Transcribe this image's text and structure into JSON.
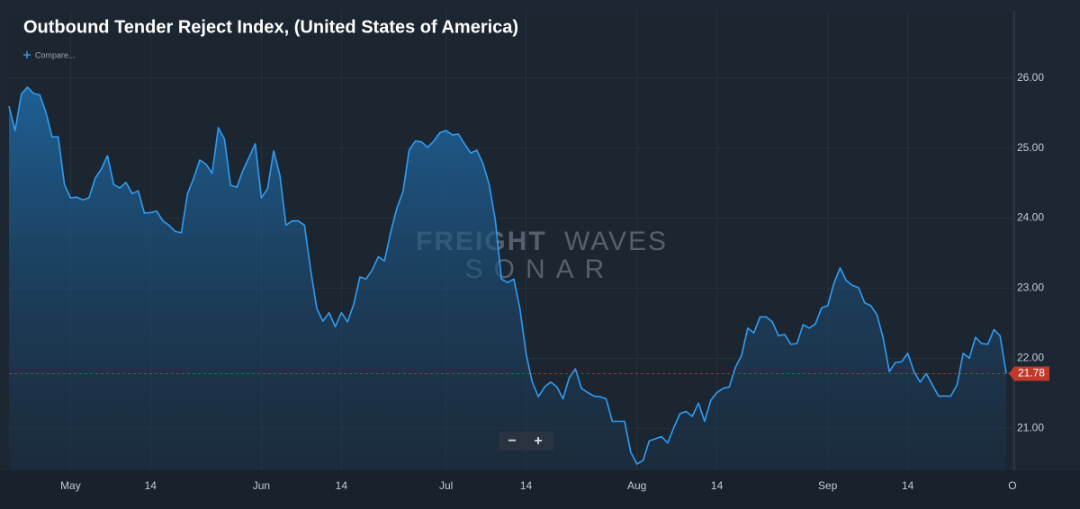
{
  "chart_data": {
    "type": "line",
    "title": "Outbound Tender Reject Index, (United States of America)",
    "compare_label": "Compare...",
    "watermark": [
      "FREIGHT",
      "WAVES",
      "SONAR"
    ],
    "zoom_controls": [
      "−",
      "+"
    ],
    "color": "#2f9df4",
    "grid": true,
    "ylim": [
      20.4,
      26.96
    ],
    "yticks": [
      {
        "value": 21,
        "label": "21.00"
      },
      {
        "value": 22,
        "label": "22.00"
      },
      {
        "value": 23,
        "label": "23.00"
      },
      {
        "value": 24,
        "label": "24.00"
      },
      {
        "value": 25,
        "label": "25.00"
      },
      {
        "value": 26,
        "label": "26.00"
      }
    ],
    "categories": [
      null,
      null,
      null,
      null,
      null,
      null,
      null,
      null,
      null,
      null,
      "May",
      null,
      null,
      null,
      null,
      null,
      null,
      null,
      null,
      null,
      null,
      null,
      null,
      "14",
      null,
      null,
      null,
      null,
      null,
      null,
      null,
      null,
      null,
      null,
      null,
      null,
      null,
      null,
      null,
      null,
      null,
      "Jun",
      null,
      null,
      null,
      null,
      null,
      null,
      null,
      null,
      null,
      null,
      null,
      null,
      "14",
      null,
      null,
      null,
      null,
      null,
      null,
      null,
      null,
      null,
      null,
      null,
      null,
      null,
      null,
      null,
      null,
      "Jul",
      null,
      null,
      null,
      null,
      null,
      null,
      null,
      null,
      null,
      null,
      null,
      null,
      "14",
      null,
      null,
      null,
      null,
      null,
      null,
      null,
      null,
      null,
      null,
      null,
      null,
      null,
      null,
      null,
      null,
      null,
      "Aug",
      null,
      null,
      null,
      null,
      null,
      null,
      null,
      null,
      null,
      null,
      null,
      null,
      "14",
      null,
      null,
      null,
      null,
      null,
      null,
      null,
      null,
      null,
      null,
      null,
      null,
      null,
      null,
      null,
      null,
      null,
      "Sep",
      null,
      null,
      null,
      null,
      null,
      null,
      null,
      null,
      null,
      null,
      null,
      null,
      "14",
      null,
      null,
      null,
      null,
      null,
      null,
      null,
      null,
      null,
      null,
      null,
      null,
      null,
      null,
      null,
      null,
      "O"
    ],
    "values": [
      25.6,
      25.25,
      25.77,
      25.87,
      25.78,
      25.76,
      25.51,
      25.16,
      25.16,
      24.48,
      24.29,
      24.3,
      24.26,
      24.29,
      24.57,
      24.7,
      24.89,
      24.48,
      24.43,
      24.51,
      24.35,
      24.39,
      24.07,
      24.08,
      24.1,
      23.96,
      23.9,
      23.81,
      23.79,
      24.35,
      24.57,
      24.83,
      24.77,
      24.64,
      25.29,
      25.13,
      24.47,
      24.44,
      24.68,
      24.87,
      25.06,
      24.29,
      24.42,
      24.96,
      24.61,
      23.9,
      23.96,
      23.96,
      23.9,
      23.26,
      22.71,
      22.53,
      22.65,
      22.45,
      22.65,
      22.52,
      22.77,
      23.16,
      23.13,
      23.26,
      23.45,
      23.39,
      23.8,
      24.14,
      24.38,
      24.97,
      25.1,
      25.09,
      25.01,
      25.1,
      25.22,
      25.25,
      25.19,
      25.2,
      25.06,
      24.93,
      24.97,
      24.78,
      24.48,
      23.97,
      23.13,
      23.08,
      23.13,
      22.71,
      22.06,
      21.66,
      21.45,
      21.59,
      21.66,
      21.59,
      21.42,
      21.72,
      21.85,
      21.57,
      21.51,
      21.46,
      21.45,
      21.42,
      21.1,
      21.1,
      21.1,
      20.66,
      20.49,
      20.54,
      20.82,
      20.85,
      20.88,
      20.79,
      21.01,
      21.21,
      21.24,
      21.17,
      21.36,
      21.1,
      21.4,
      21.51,
      21.57,
      21.59,
      21.87,
      22.04,
      22.43,
      22.36,
      22.59,
      22.59,
      22.52,
      22.32,
      22.34,
      22.2,
      22.21,
      22.48,
      22.43,
      22.49,
      22.72,
      22.75,
      23.07,
      23.29,
      23.11,
      23.04,
      23.01,
      22.79,
      22.75,
      22.62,
      22.29,
      21.81,
      21.94,
      21.95,
      22.07,
      21.81,
      21.66,
      21.78,
      21.62,
      21.46,
      21.46,
      21.46,
      21.62,
      22.07,
      22.0,
      22.3,
      22.21,
      22.2,
      22.41,
      22.32,
      21.78,
      null
    ]
  }
}
